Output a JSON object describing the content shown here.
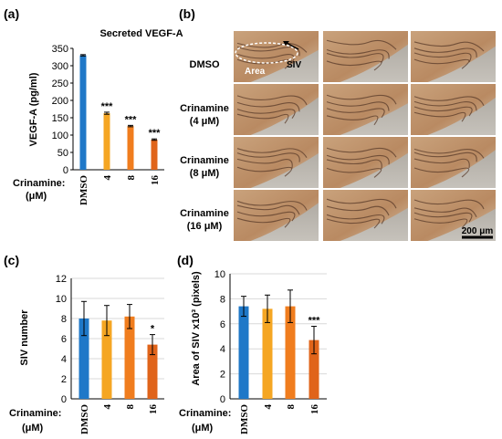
{
  "figure": {
    "panels": {
      "a": {
        "label": "(a)",
        "title": "Secreted VEGF-A",
        "ylabel": "VEGF-A (pg/ml)",
        "row_label_1": "Crinamine:",
        "row_label_2": "(μM)"
      },
      "b": {
        "label": "(b)",
        "rows": [
          "DMSO",
          "Crinamine\n(4 μM)",
          "Crinamine\n(8 μM)",
          "Crinamine\n(16 μM)"
        ],
        "annotation_area": "Area",
        "annotation_siv": "SIV",
        "scale_bar": "200 μm"
      },
      "c": {
        "label": "(c)",
        "ylabel": "SIV number",
        "row_label_1": "Crinamine:",
        "row_label_2": "(μM)"
      },
      "d": {
        "label": "(d)",
        "ylabel": "Area of SIV x10³ (pixels)",
        "row_label_1": "Crinamine:",
        "row_label_2": "(μM)"
      }
    }
  },
  "colors": {
    "dmso": "#1f78c8",
    "c4": "#f5a623",
    "c8": "#f07d1e",
    "c16": "#e0641a",
    "axis": "#000000",
    "grid": "#d9d9d9"
  },
  "chart_data": [
    {
      "id": "a",
      "type": "bar",
      "title": "Secreted VEGF-A",
      "ylabel": "VEGF-A (pg/ml)",
      "categories": [
        "DMSO",
        "4",
        "8",
        "16"
      ],
      "values": [
        330,
        163,
        126,
        87
      ],
      "errors": [
        2,
        3,
        2,
        2
      ],
      "significance": [
        "",
        "***",
        "***",
        "***"
      ],
      "ylim": [
        0,
        350
      ],
      "yticks": [
        0,
        50,
        100,
        150,
        200,
        250,
        300,
        350
      ],
      "grid": false
    },
    {
      "id": "c",
      "type": "bar",
      "ylabel": "SIV number",
      "categories": [
        "DMSO",
        "4",
        "8",
        "16"
      ],
      "values": [
        8.0,
        7.8,
        8.2,
        5.4
      ],
      "errors": [
        1.7,
        1.5,
        1.2,
        1.0
      ],
      "significance": [
        "",
        "",
        "",
        "*"
      ],
      "ylim": [
        0,
        12
      ],
      "yticks": [
        0,
        2,
        4,
        6,
        8,
        10,
        12
      ],
      "grid": true
    },
    {
      "id": "d",
      "type": "bar",
      "ylabel": "Area of SIV x10³ (pixels)",
      "categories": [
        "DMSO",
        "4",
        "8",
        "16"
      ],
      "values": [
        7.4,
        7.2,
        7.4,
        4.7
      ],
      "errors": [
        0.8,
        1.1,
        1.3,
        1.1
      ],
      "significance": [
        "",
        "",
        "",
        "***"
      ],
      "ylim": [
        0,
        10
      ],
      "yticks": [
        0,
        2,
        4,
        6,
        8,
        10
      ],
      "grid": true
    }
  ]
}
